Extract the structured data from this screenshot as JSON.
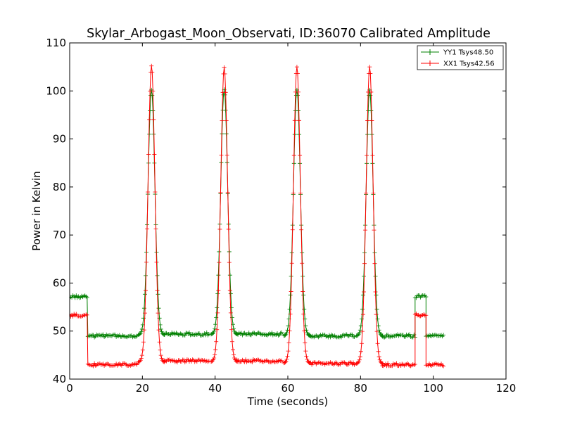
{
  "chart_data": {
    "type": "line",
    "title": "Skylar_Arbogast_Moon_Observati, ID:36070 Calibrated Amplitude",
    "xlabel": "Time (seconds)",
    "ylabel": "Power in Kelvin",
    "xlim": [
      0,
      120
    ],
    "ylim": [
      40,
      110
    ],
    "xticks": [
      "0",
      "20",
      "40",
      "60",
      "80",
      "100",
      "120"
    ],
    "yticks": [
      "40",
      "50",
      "60",
      "70",
      "80",
      "90",
      "100",
      "110"
    ],
    "grid": false,
    "legend_position": "top-right",
    "series": [
      {
        "name": "YY1 Tsys48.50",
        "color": "#008000",
        "marker": "+",
        "segments": [
          {
            "t_start": 0,
            "t_end": 5,
            "level": 57.2
          },
          {
            "t_start": 5,
            "t_end": 18.5,
            "level": 49.0
          },
          {
            "peak": 22.5,
            "base": 49.2,
            "max": 100.2
          },
          {
            "t_start": 26,
            "t_end": 38.5,
            "level": 49.4
          },
          {
            "peak": 42.5,
            "base": 49.3,
            "max": 100.3
          },
          {
            "t_start": 46,
            "t_end": 58.5,
            "level": 49.4
          },
          {
            "peak": 62.5,
            "base": 49.0,
            "max": 100.2
          },
          {
            "t_start": 66,
            "t_end": 78.5,
            "level": 49.0
          },
          {
            "peak": 82.5,
            "base": 49.0,
            "max": 100.2
          },
          {
            "t_start": 86,
            "t_end": 95,
            "level": 49.0
          },
          {
            "t_start": 95,
            "t_end": 98,
            "level": 57.2
          },
          {
            "t_start": 98,
            "t_end": 103,
            "level": 49.0
          }
        ]
      },
      {
        "name": "XX1 Tsys42.56",
        "color": "#ff0000",
        "marker": "+",
        "segments": [
          {
            "t_start": 0,
            "t_end": 5,
            "level": 53.3
          },
          {
            "t_start": 5,
            "t_end": 18.5,
            "level": 43.0
          },
          {
            "peak": 22.5,
            "base": 43.5,
            "max": 105.2
          },
          {
            "t_start": 26,
            "t_end": 38.5,
            "level": 43.8
          },
          {
            "peak": 42.5,
            "base": 43.6,
            "max": 104.9
          },
          {
            "t_start": 46,
            "t_end": 58.5,
            "level": 43.8
          },
          {
            "peak": 62.5,
            "base": 43.3,
            "max": 105.0
          },
          {
            "t_start": 66,
            "t_end": 78.5,
            "level": 43.2
          },
          {
            "peak": 82.5,
            "base": 43.2,
            "max": 105.0
          },
          {
            "t_start": 86,
            "t_end": 95,
            "level": 43.0
          },
          {
            "t_start": 95,
            "t_end": 98,
            "level": 53.4
          },
          {
            "t_start": 98,
            "t_end": 103,
            "level": 43.0
          }
        ]
      }
    ]
  }
}
